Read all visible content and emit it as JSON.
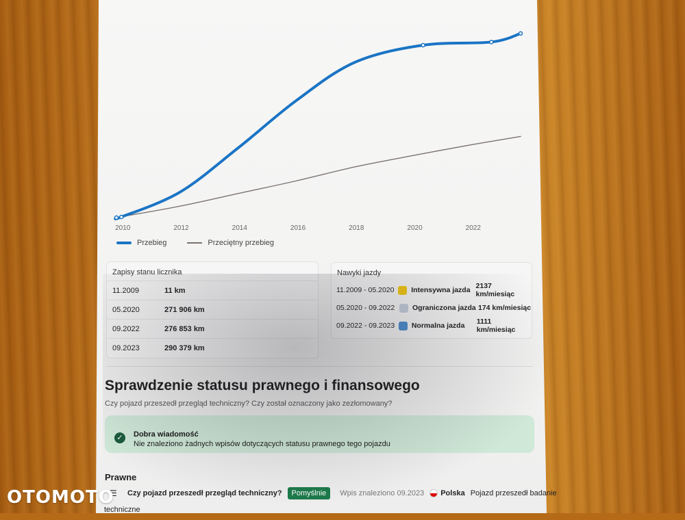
{
  "chart_data": {
    "type": "line",
    "x_ticks": [
      "2010",
      "2012",
      "2014",
      "2016",
      "2018",
      "2020",
      "2022"
    ],
    "series": [
      {
        "name": "Przebieg",
        "color": "#1a74c4",
        "x": [
          2009.83,
          2010.0,
          2012,
          2014,
          2016,
          2018,
          2020.33,
          2022.67,
          2023.67
        ],
        "y": [
          11,
          1000,
          40000,
          110000,
          185000,
          245000,
          271906,
          276853,
          290379
        ]
      },
      {
        "name": "Przeciętny przebieg",
        "color": "#7a7370",
        "x": [
          2009.83,
          2012,
          2014,
          2016,
          2018,
          2020,
          2022,
          2023.67
        ],
        "y": [
          11,
          18000,
          38000,
          58000,
          80000,
          98000,
          115000,
          128000
        ]
      }
    ]
  },
  "odometer": {
    "header": "Zapisy stanu licznika",
    "rows": [
      {
        "date": "11.2009",
        "value": "11 km"
      },
      {
        "date": "05.2020",
        "value": "271 906 km"
      },
      {
        "date": "09.2022",
        "value": "276 853 km"
      },
      {
        "date": "09.2023",
        "value": "290 379 km"
      }
    ]
  },
  "habits": {
    "header": "Nawyki jazdy",
    "rows": [
      {
        "period": "11.2009 - 05.2020",
        "color": "#f3c713",
        "label": "Intensywna jazda",
        "rate": "2137 km/miesiąc"
      },
      {
        "period": "05.2020 - 09.2022",
        "color": "#c5cfdd",
        "label": "Ograniczona jazda",
        "rate": "174 km/miesiąc"
      },
      {
        "period": "09.2022 - 09.2023",
        "color": "#4f8fd1",
        "label": "Normalna jazda",
        "rate": "1111 km/miesiąc"
      }
    ]
  },
  "legal": {
    "title": "Sprawdzenie statusu prawnego i finansowego",
    "subtitle": "Czy pojazd przeszedł przegląd techniczny? Czy został oznaczony jako zezłomowany?",
    "good_title": "Dobra wiadomość",
    "good_text": "Nie znaleziono żadnych wpisów dotyczących statusu prawnego tego pojazdu",
    "section": "Prawne",
    "question": "Czy pojazd przeszedł przegląd techniczny?",
    "badge": "Pomyślnie",
    "found": "Wpis znaleziono 09.2023",
    "country": "Polska",
    "note_a": "Pojazd przeszedł badanie",
    "note_b": "techniczne"
  },
  "watermark": "OTOMOTO"
}
